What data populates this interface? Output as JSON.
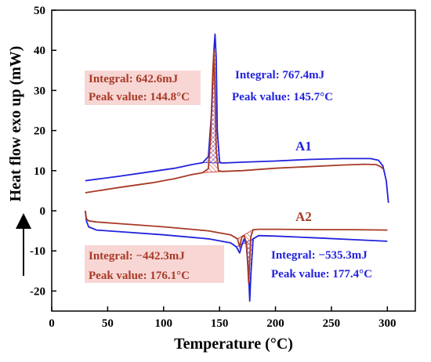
{
  "chart_data": {
    "type": "line",
    "xlabel": "Temperature (°C)",
    "ylabel": "Heat flow exo up (mW)",
    "xlim": [
      0,
      325
    ],
    "ylim": [
      -25,
      50
    ],
    "xticks": [
      0,
      50,
      100,
      150,
      200,
      250,
      300
    ],
    "yticks": [
      -20,
      -10,
      0,
      10,
      20,
      30,
      40,
      50
    ],
    "grid": false,
    "colors": {
      "blue": "#2222dd",
      "red": "#a83a26",
      "fill_red": "#f4c6c2",
      "hatch_blue": "#2222dd",
      "hatch_red": "#cc2222"
    },
    "series": [
      {
        "color": "blue",
        "x": [
          30,
          60,
          90,
          110,
          125,
          135,
          140,
          143,
          145,
          146,
          147,
          148,
          150,
          152,
          170,
          200,
          230,
          260,
          285,
          292,
          296,
          299,
          301
        ],
        "y": [
          7.5,
          8.6,
          9.8,
          10.6,
          11.5,
          12.0,
          13.5,
          25,
          40,
          44,
          38,
          20,
          12.2,
          11.9,
          12.1,
          12.4,
          12.8,
          13.0,
          13.0,
          12.6,
          11.2,
          7.5,
          2.0
        ]
      },
      {
        "color": "red",
        "x": [
          30,
          60,
          90,
          110,
          125,
          135,
          140,
          142,
          144,
          145,
          146,
          147,
          149,
          152,
          170,
          200,
          230,
          260,
          280,
          290,
          294,
          296
        ],
        "y": [
          4.5,
          5.8,
          7.0,
          8.0,
          9.0,
          9.5,
          10.5,
          18,
          35,
          40,
          30,
          15,
          10.0,
          9.8,
          10.0,
          10.6,
          11.0,
          11.4,
          11.6,
          11.5,
          11.0,
          10.5
        ]
      },
      {
        "color": "blue",
        "x": [
          30,
          31,
          33,
          40,
          60,
          100,
          140,
          160,
          165,
          168,
          170,
          172,
          174,
          176,
          177,
          178,
          180,
          185,
          200,
          240,
          270,
          300
        ],
        "y": [
          0,
          -2.5,
          -4.0,
          -4.8,
          -5.2,
          -6.0,
          -7.0,
          -8.0,
          -9.0,
          -10.5,
          -8.5,
          -7.0,
          -8.5,
          -16,
          -22.5,
          -16,
          -7.0,
          -6.2,
          -6.3,
          -6.8,
          -7.2,
          -7.6
        ]
      },
      {
        "color": "red",
        "x": [
          30,
          31,
          33,
          40,
          60,
          100,
          140,
          160,
          166,
          168,
          170,
          172,
          174,
          175,
          176,
          177,
          178,
          180,
          185,
          200,
          240,
          270,
          300
        ],
        "y": [
          0,
          -2.0,
          -2.5,
          -2.8,
          -3.2,
          -4.0,
          -5.0,
          -6.0,
          -7.0,
          -9.0,
          -6.5,
          -6.2,
          -8.0,
          -12,
          -18,
          -12,
          -6.5,
          -4.7,
          -4.6,
          -4.6,
          -4.7,
          -4.7,
          -4.8
        ]
      }
    ],
    "annotations": {
      "a1_red_integral": "Integral: 642.6mJ",
      "a1_red_peak": "Peak value: 144.8°C",
      "a1_blue_integral": "Integral: 767.4mJ",
      "a1_blue_peak": "Peak value: 145.7°C",
      "a2_red_integral": "Integral: −442.3mJ",
      "a2_red_peak": "Peak value: 176.1°C",
      "a2_blue_integral": "Integral: −535.3mJ",
      "a2_blue_peak": "Peak value: 177.4°C"
    },
    "curve_labels": {
      "a1": "A1",
      "a2": "A2"
    }
  }
}
